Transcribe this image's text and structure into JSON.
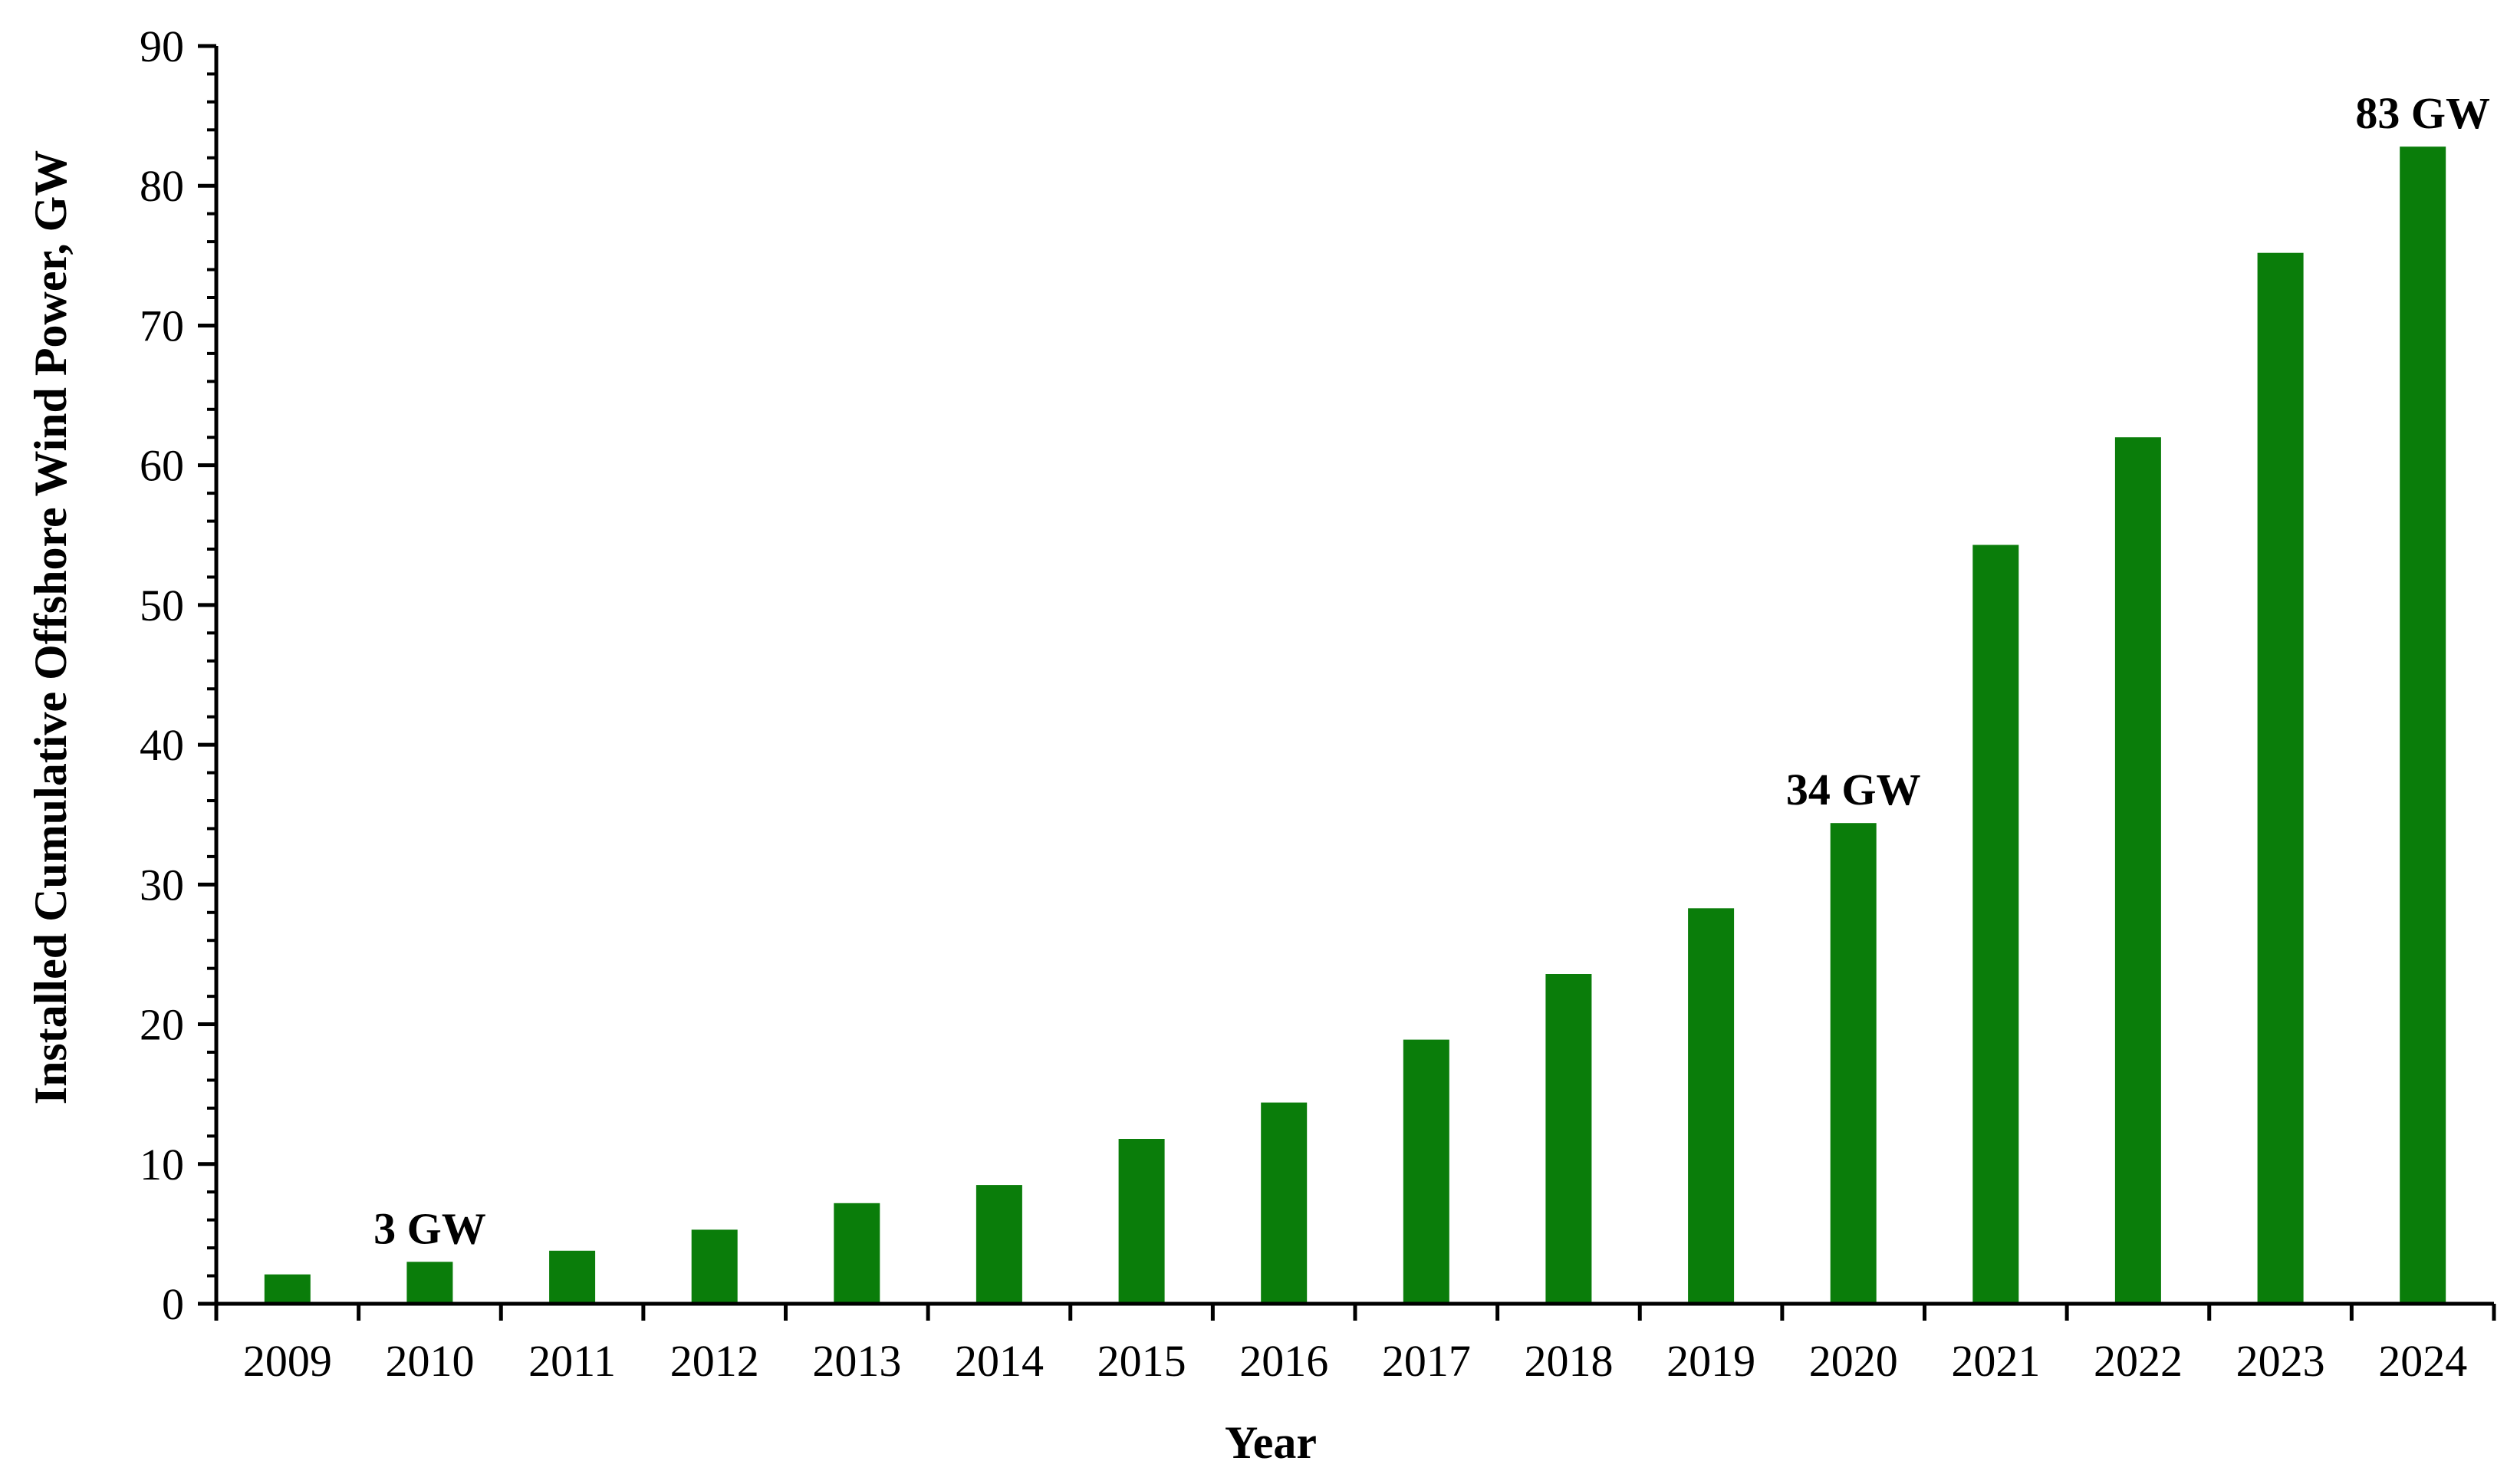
{
  "chart_data": {
    "type": "bar",
    "title": "",
    "xlabel": "Year",
    "ylabel": "Installed Cumulative Offshore Wind Power, GW",
    "categories": [
      "2009",
      "2010",
      "2011",
      "2012",
      "2013",
      "2014",
      "2015",
      "2016",
      "2017",
      "2018",
      "2019",
      "2020",
      "2021",
      "2022",
      "2023",
      "2024"
    ],
    "values": [
      2.1,
      3.0,
      3.8,
      5.3,
      7.2,
      8.5,
      11.8,
      14.4,
      18.9,
      23.6,
      28.3,
      34.4,
      54.3,
      62.0,
      75.2,
      82.8
    ],
    "ylim": [
      0,
      90
    ],
    "yticks": [
      "0",
      "10",
      "20",
      "30",
      "40",
      "50",
      "60",
      "70",
      "80",
      "90"
    ],
    "grid": false,
    "legend": "none",
    "bar_color": "#0a7d0a",
    "annotations": [
      {
        "category": "2010",
        "text": "3 GW"
      },
      {
        "category": "2020",
        "text": "34 GW"
      },
      {
        "category": "2024",
        "text": "83 GW"
      }
    ]
  }
}
